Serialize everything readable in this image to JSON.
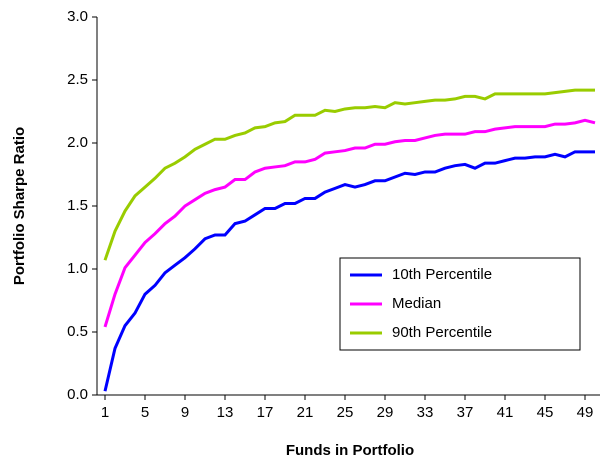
{
  "chart_data": {
    "type": "line",
    "x_label": "Funds in Portfolio",
    "y_label": "Portfolio Sharpe Ratio",
    "x": [
      1,
      2,
      3,
      4,
      5,
      6,
      7,
      8,
      9,
      10,
      11,
      12,
      13,
      14,
      15,
      16,
      17,
      18,
      19,
      20,
      21,
      22,
      23,
      24,
      25,
      26,
      27,
      28,
      29,
      30,
      31,
      32,
      33,
      34,
      35,
      36,
      37,
      38,
      39,
      40,
      41,
      42,
      43,
      44,
      45,
      46,
      47,
      48,
      49,
      50
    ],
    "xlim": [
      0.2,
      50.5
    ],
    "xticks": [
      1,
      5,
      9,
      13,
      17,
      21,
      25,
      29,
      33,
      37,
      41,
      45,
      49
    ],
    "ylim": [
      0,
      3
    ],
    "yticks": [
      {
        "value": 0,
        "label": "0.0"
      },
      0.5,
      {
        "value": 1,
        "label": "1.0"
      },
      1.5,
      {
        "value": 2,
        "label": "2.0"
      },
      2.5,
      {
        "value": 3,
        "label": "3.0"
      }
    ],
    "grid": false,
    "legend_position": "lower-right",
    "series": [
      {
        "name": "10th Percentile",
        "color": "#0000ff",
        "values": [
          0.03,
          0.37,
          0.55,
          0.65,
          0.8,
          0.87,
          0.97,
          1.03,
          1.09,
          1.16,
          1.24,
          1.27,
          1.27,
          1.36,
          1.38,
          1.43,
          1.48,
          1.48,
          1.52,
          1.52,
          1.56,
          1.56,
          1.61,
          1.64,
          1.67,
          1.65,
          1.67,
          1.7,
          1.7,
          1.73,
          1.76,
          1.75,
          1.77,
          1.77,
          1.8,
          1.82,
          1.83,
          1.8,
          1.84,
          1.84,
          1.86,
          1.88,
          1.88,
          1.89,
          1.89,
          1.91,
          1.89,
          1.93,
          1.93,
          1.93
        ]
      },
      {
        "name": "Median",
        "color": "#ff00ff",
        "values": [
          0.54,
          0.8,
          1.01,
          1.11,
          1.21,
          1.28,
          1.36,
          1.42,
          1.5,
          1.55,
          1.6,
          1.63,
          1.65,
          1.71,
          1.71,
          1.77,
          1.8,
          1.81,
          1.82,
          1.85,
          1.85,
          1.87,
          1.92,
          1.93,
          1.94,
          1.96,
          1.96,
          1.99,
          1.99,
          2.01,
          2.02,
          2.02,
          2.04,
          2.06,
          2.07,
          2.07,
          2.07,
          2.09,
          2.09,
          2.11,
          2.12,
          2.13,
          2.13,
          2.13,
          2.13,
          2.15,
          2.15,
          2.16,
          2.18,
          2.16
        ]
      },
      {
        "name": "90th Percentile",
        "color": "#99cc00",
        "values": [
          1.07,
          1.3,
          1.46,
          1.58,
          1.65,
          1.72,
          1.8,
          1.84,
          1.89,
          1.95,
          1.99,
          2.03,
          2.03,
          2.06,
          2.08,
          2.12,
          2.13,
          2.16,
          2.17,
          2.22,
          2.22,
          2.22,
          2.26,
          2.25,
          2.27,
          2.28,
          2.28,
          2.29,
          2.28,
          2.32,
          2.31,
          2.32,
          2.33,
          2.34,
          2.34,
          2.35,
          2.37,
          2.37,
          2.35,
          2.39,
          2.39,
          2.39,
          2.39,
          2.39,
          2.39,
          2.4,
          2.41,
          2.42,
          2.42,
          2.42
        ]
      }
    ]
  }
}
